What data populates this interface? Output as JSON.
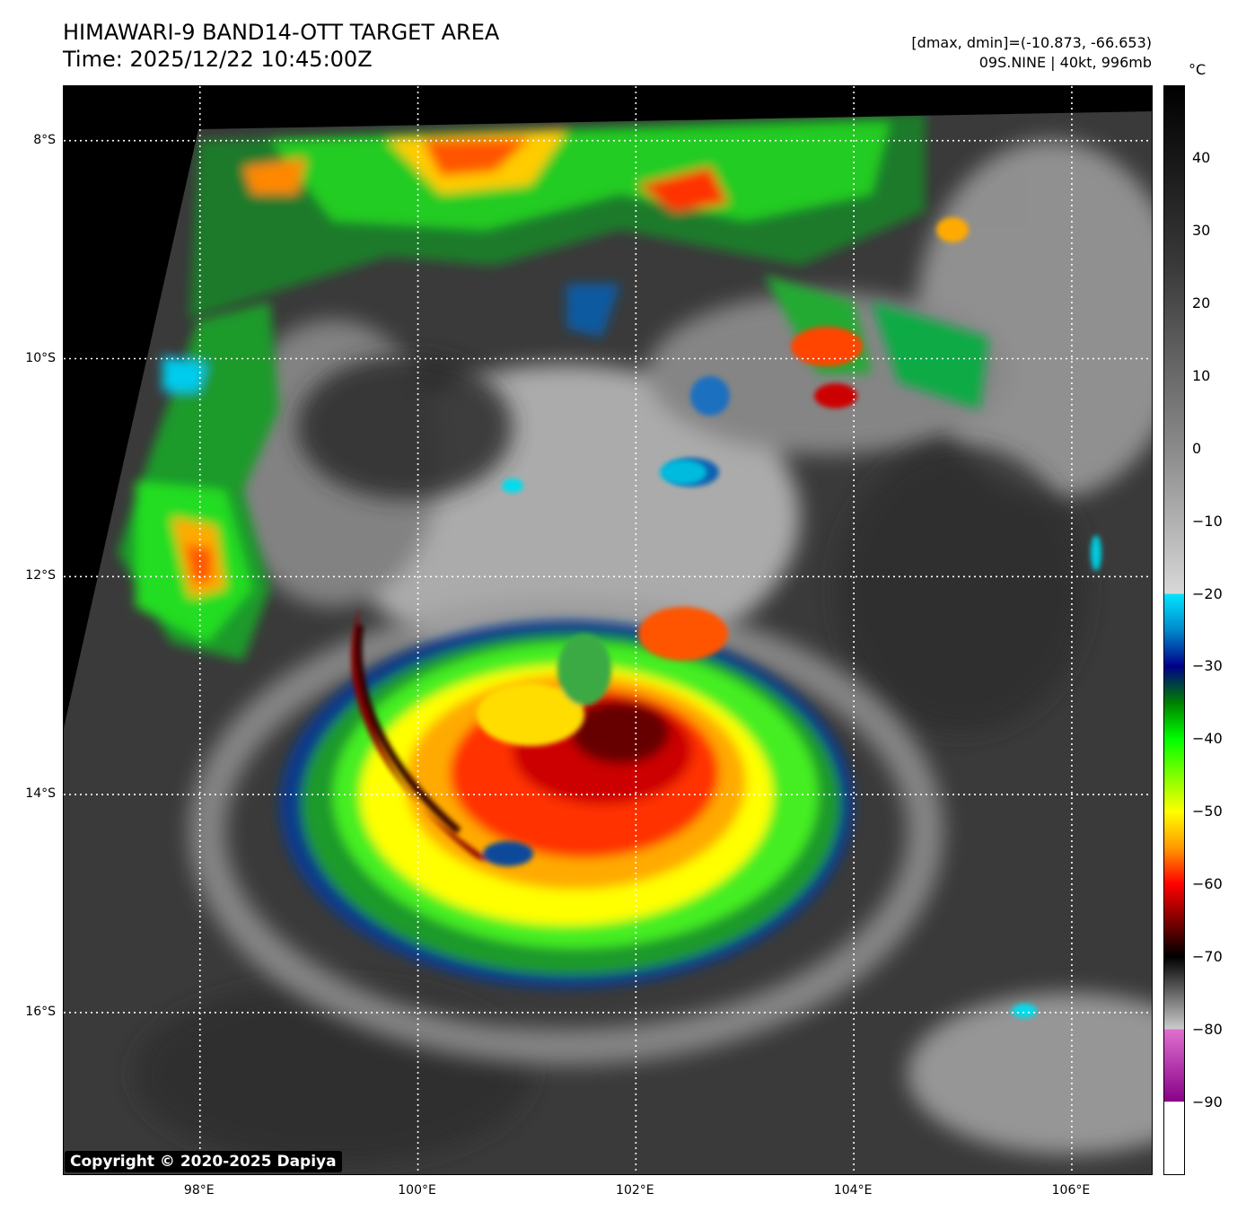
{
  "title": {
    "line1": "HIMAWARI-9 BAND14-OTT TARGET AREA",
    "line2": "Time: 2025/12/22 10:45:00Z"
  },
  "info": {
    "dminmax": "[dmax, dmin]=(-10.873, -66.653)",
    "storm": "09S.NINE | 40kt, 996mb"
  },
  "colorbar": {
    "unit": "°C",
    "range": [
      -100,
      50
    ],
    "ticks": [
      "40",
      "30",
      "20",
      "10",
      "0",
      "−10",
      "−20",
      "−30",
      "−40",
      "−50",
      "−60",
      "−70",
      "−80",
      "−90"
    ],
    "tick_values": [
      40,
      30,
      20,
      10,
      0,
      -10,
      -20,
      -30,
      -40,
      -50,
      -60,
      -70,
      -80,
      -90
    ],
    "stops": [
      {
        "v": 50,
        "c": "#000000"
      },
      {
        "v": 25,
        "c": "#3a3a3a"
      },
      {
        "v": 0,
        "c": "#8a8a8a"
      },
      {
        "v": -20,
        "c": "#d8d8d8"
      },
      {
        "v": -20.01,
        "c": "#00e5ff"
      },
      {
        "v": -25,
        "c": "#0088cc"
      },
      {
        "v": -30,
        "c": "#000088"
      },
      {
        "v": -35,
        "c": "#008000"
      },
      {
        "v": -40,
        "c": "#00ff00"
      },
      {
        "v": -50,
        "c": "#ffff00"
      },
      {
        "v": -55,
        "c": "#ff9900"
      },
      {
        "v": -60,
        "c": "#ff0000"
      },
      {
        "v": -66,
        "c": "#660000"
      },
      {
        "v": -70,
        "c": "#000000"
      },
      {
        "v": -80,
        "c": "#cccccc"
      },
      {
        "v": -80.01,
        "c": "#e070d0"
      },
      {
        "v": -90,
        "c": "#880088"
      },
      {
        "v": -90.01,
        "c": "#ffffff"
      },
      {
        "v": -100,
        "c": "#ffffff"
      }
    ]
  },
  "map": {
    "lat_labels": [
      "8°S",
      "10°S",
      "12°S",
      "14°S",
      "16°S"
    ],
    "lat_values": [
      -8,
      -10,
      -12,
      -14,
      -16
    ],
    "lon_labels": [
      "98°E",
      "100°E",
      "102°E",
      "104°E",
      "106°E"
    ],
    "lon_values": [
      98,
      100,
      102,
      104,
      106
    ],
    "lon_range": [
      96.75,
      106.75
    ],
    "lat_range": [
      -17.5,
      -7.5
    ],
    "gridlines": true
  },
  "copyright": "Copyright © 2020-2025 Dapiya"
}
